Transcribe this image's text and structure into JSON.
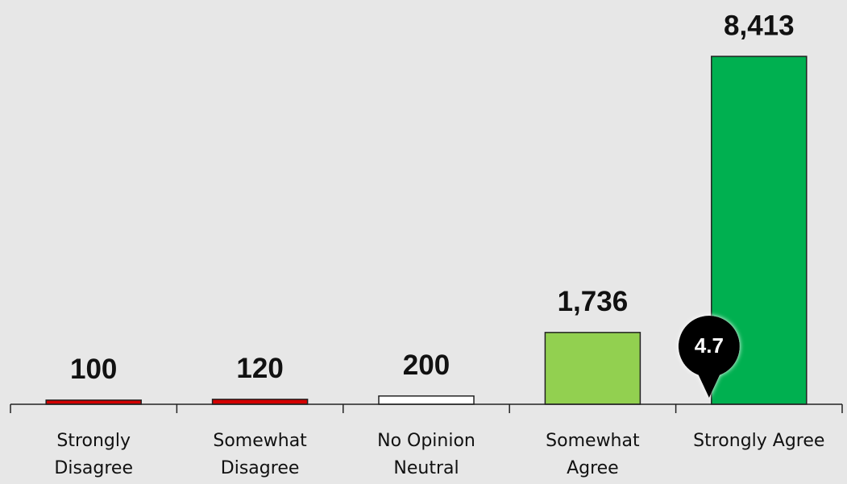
{
  "chart_data": {
    "type": "bar",
    "categories": [
      [
        "Strongly",
        "Disagree"
      ],
      [
        "Somewhat",
        "Disagree"
      ],
      [
        "No Opinion",
        "Neutral"
      ],
      [
        "Somewhat",
        "Agree"
      ],
      [
        "Strongly Agree"
      ]
    ],
    "values": [
      100,
      120,
      200,
      1736,
      8413
    ],
    "value_labels": [
      "100",
      "120",
      "200",
      "1,736",
      "8,413"
    ],
    "colors": [
      "#d40000",
      "#d40000",
      "#ffffff",
      "#92d050",
      "#00b050"
    ],
    "score": 4.7
  }
}
